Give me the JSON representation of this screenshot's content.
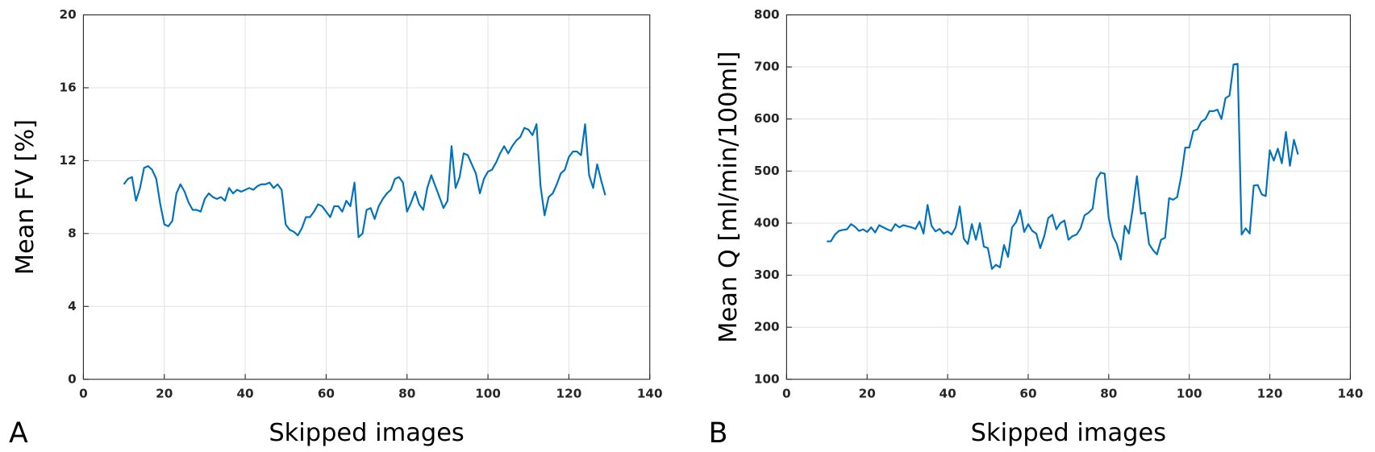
{
  "chart_data": [
    {
      "type": "line",
      "panel_label": "A",
      "xlabel": "Skipped images",
      "ylabel": "Mean FV [%]",
      "color": "#0072bd",
      "grid": true,
      "xlim": [
        0,
        140
      ],
      "xticks": [
        0,
        20,
        40,
        60,
        80,
        100,
        120,
        140
      ],
      "ylim": [
        0,
        20
      ],
      "yticks": [
        0,
        4,
        8,
        12,
        16,
        20
      ],
      "x": [
        10,
        11,
        12,
        13,
        14,
        15,
        16,
        17,
        18,
        19,
        20,
        21,
        22,
        23,
        24,
        25,
        26,
        27,
        28,
        29,
        30,
        31,
        32,
        33,
        34,
        35,
        36,
        37,
        38,
        39,
        40,
        41,
        42,
        43,
        44,
        45,
        46,
        47,
        48,
        49,
        50,
        51,
        52,
        53,
        54,
        55,
        56,
        57,
        58,
        59,
        60,
        61,
        62,
        63,
        64,
        65,
        66,
        67,
        68,
        69,
        70,
        71,
        72,
        73,
        74,
        75,
        76,
        77,
        78,
        79,
        80,
        81,
        82,
        83,
        84,
        85,
        86,
        87,
        88,
        89,
        90,
        91,
        92,
        93,
        94,
        95,
        96,
        97,
        98,
        99,
        100,
        101,
        102,
        103,
        104,
        105,
        106,
        107,
        108,
        109,
        110,
        111,
        112,
        113,
        114,
        115,
        116,
        117,
        118,
        119,
        120,
        121,
        122,
        123,
        124,
        125,
        126,
        127,
        128,
        129
      ],
      "values": [
        10.7,
        11.0,
        11.1,
        9.8,
        10.5,
        11.6,
        11.7,
        11.5,
        11.0,
        9.6,
        8.5,
        8.4,
        8.7,
        10.2,
        10.7,
        10.3,
        9.7,
        9.3,
        9.3,
        9.2,
        9.9,
        10.2,
        10.0,
        9.9,
        10.0,
        9.8,
        10.5,
        10.2,
        10.4,
        10.3,
        10.4,
        10.5,
        10.4,
        10.6,
        10.7,
        10.7,
        10.8,
        10.5,
        10.7,
        10.4,
        8.5,
        8.2,
        8.1,
        7.9,
        8.3,
        8.9,
        8.9,
        9.2,
        9.6,
        9.5,
        9.2,
        8.9,
        9.5,
        9.5,
        9.2,
        9.8,
        9.5,
        10.8,
        7.8,
        8.0,
        9.3,
        9.4,
        8.8,
        9.5,
        9.9,
        10.2,
        10.4,
        11.0,
        11.1,
        10.8,
        9.2,
        9.7,
        10.3,
        9.6,
        9.3,
        10.5,
        11.2,
        10.6,
        10.0,
        9.4,
        9.8,
        12.8,
        10.5,
        11.1,
        12.4,
        12.3,
        11.8,
        11.3,
        10.2,
        11.0,
        11.4,
        11.5,
        11.9,
        12.4,
        12.8,
        12.4,
        12.8,
        13.1,
        13.3,
        13.8,
        13.7,
        13.4,
        14.0,
        10.6,
        9.0,
        10.0,
        10.2,
        10.7,
        11.3,
        11.5,
        12.2,
        12.5,
        12.5,
        12.3,
        14.0,
        11.2,
        10.5,
        11.8,
        10.9,
        10.1
      ]
    },
    {
      "type": "line",
      "panel_label": "B",
      "xlabel": "Skipped images",
      "ylabel": "Mean Q [ml/min/100ml]",
      "color": "#0072bd",
      "grid": true,
      "xlim": [
        0,
        140
      ],
      "xticks": [
        0,
        20,
        40,
        60,
        80,
        100,
        120,
        140
      ],
      "ylim": [
        100,
        800
      ],
      "yticks": [
        100,
        200,
        300,
        400,
        500,
        600,
        700,
        800
      ],
      "x": [
        10,
        11,
        12,
        13,
        14,
        15,
        16,
        17,
        18,
        19,
        20,
        21,
        22,
        23,
        24,
        25,
        26,
        27,
        28,
        29,
        30,
        31,
        32,
        33,
        34,
        35,
        36,
        37,
        38,
        39,
        40,
        41,
        42,
        43,
        44,
        45,
        46,
        47,
        48,
        49,
        50,
        51,
        52,
        53,
        54,
        55,
        56,
        57,
        58,
        59,
        60,
        61,
        62,
        63,
        64,
        65,
        66,
        67,
        68,
        69,
        70,
        71,
        72,
        73,
        74,
        75,
        76,
        77,
        78,
        79,
        80,
        81,
        82,
        83,
        84,
        85,
        86,
        87,
        88,
        89,
        90,
        91,
        92,
        93,
        94,
        95,
        96,
        97,
        98,
        99,
        100,
        101,
        102,
        103,
        104,
        105,
        106,
        107,
        108,
        109,
        110,
        111,
        112,
        113,
        114,
        115,
        116,
        117,
        118,
        119,
        120,
        121,
        122,
        123,
        124,
        125,
        126,
        127
      ],
      "values": [
        365,
        365,
        378,
        385,
        387,
        388,
        398,
        393,
        385,
        388,
        383,
        392,
        382,
        396,
        392,
        388,
        385,
        398,
        392,
        396,
        394,
        392,
        389,
        403,
        380,
        435,
        395,
        384,
        389,
        380,
        384,
        378,
        392,
        432,
        370,
        360,
        398,
        368,
        400,
        355,
        352,
        312,
        320,
        315,
        358,
        335,
        392,
        402,
        425,
        383,
        398,
        385,
        380,
        352,
        375,
        410,
        416,
        388,
        400,
        405,
        368,
        375,
        378,
        390,
        415,
        420,
        428,
        485,
        497,
        495,
        410,
        375,
        360,
        330,
        395,
        380,
        430,
        490,
        418,
        420,
        360,
        348,
        340,
        368,
        372,
        448,
        445,
        450,
        490,
        545,
        545,
        577,
        580,
        595,
        600,
        615,
        615,
        618,
        600,
        640,
        645,
        705,
        706,
        378,
        390,
        380,
        472,
        473,
        455,
        452,
        540,
        520,
        543,
        515,
        575,
        510,
        560,
        532
      ]
    }
  ]
}
